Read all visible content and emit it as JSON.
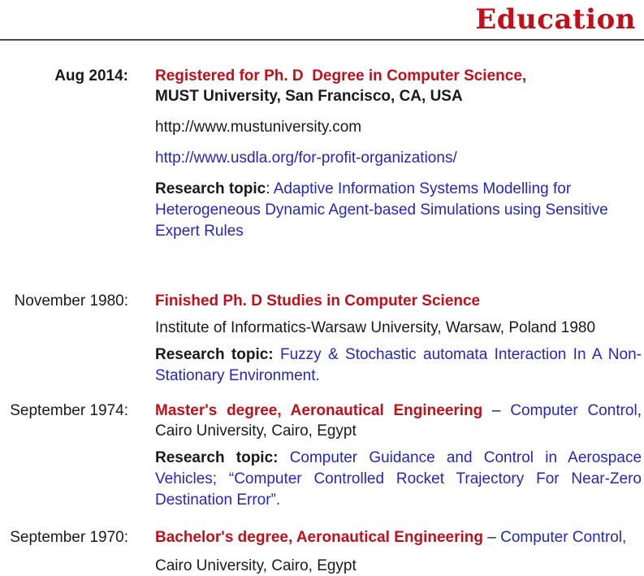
{
  "header": {
    "title": "Education"
  },
  "colors": {
    "heading_red": "#c2101a",
    "link_blue": "#2626be",
    "text_black": "#1a1a1a",
    "divider_gray": "#4a4a4a"
  },
  "entries": [
    {
      "date": "Aug 2014:",
      "degree": "Registered for Ph. D  Degree in Computer Science,",
      "institution": "MUST University, San Francisco, CA, USA",
      "url_plain": "http://www.mustuniversity.com",
      "url_link": "http://www.usdla.org/for-profit-organizations/",
      "research_label": "Research topic",
      "research_sep": ": ",
      "research_text": "Adaptive Information Systems Modelling for Heterogeneous Dynamic Agent-based Simulations using Sensitive Expert Rules"
    },
    {
      "date": "November 1980:",
      "degree": "Finished Ph. D Studies in Computer Science",
      "institution": "Institute of Informatics-Warsaw University, Warsaw, Poland 1980",
      "research_label": "Research topic:",
      "research_text": " Fuzzy & Stochastic automata Interaction In A Non-Stationary Environment."
    },
    {
      "date": "September 1974:",
      "degree": "Master's degree, Aeronautical Engineering",
      "dash": " – ",
      "specialization": "Computer Control",
      "institution": ", Cairo University, Cairo, Egypt",
      "research_label": "Research topic:",
      "research_text": " Computer Guidance and Control in Aerospace Vehicles; “Computer Controlled Rocket Trajectory For Near-Zero Destination Error”."
    },
    {
      "date": "September 1970:",
      "degree": "Bachelor's degree, Aeronautical Engineering",
      "dash": " – ",
      "specialization": "Computer Control,",
      "institution": "Cairo University, Cairo, Egypt"
    }
  ]
}
